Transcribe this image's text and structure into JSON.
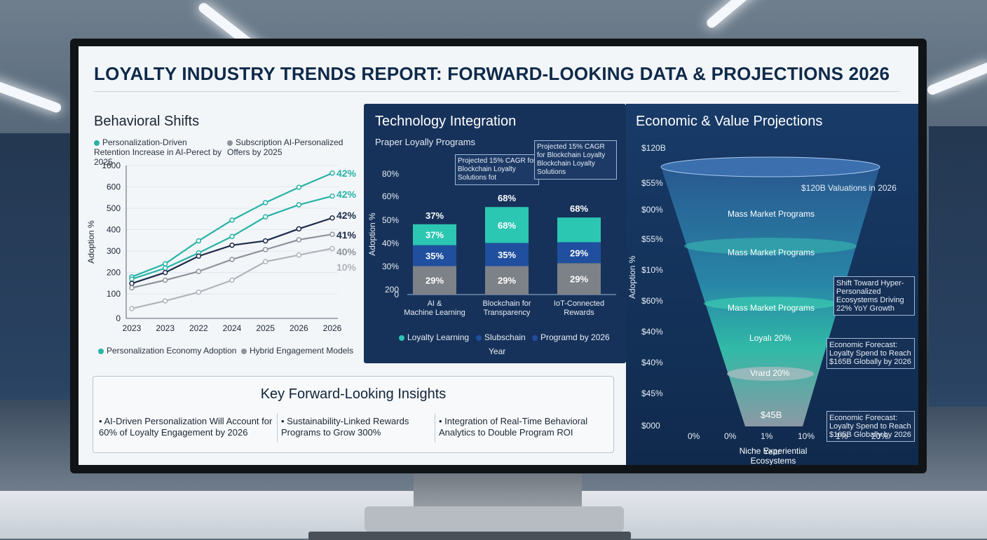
{
  "report_title": "LOYALTY INDUSTRY TRENDS REPORT: FORWARD-LOOKING DATA & PROJECTIONS 2026",
  "behavioral": {
    "title": "Behavioral Shifts",
    "legend_top": [
      "Personalization-Driven Retention Increase in AI-Perect by 2025",
      "Subscription AI-Personalized Offers by 2025"
    ],
    "legend_bottom": [
      "Personalization Economy Adoption",
      "Hybrid Engagement Models"
    ],
    "ylabel": "Adoption %",
    "yticks": [
      "1600",
      "600",
      "500",
      "400",
      "300",
      "200",
      "100",
      "0"
    ],
    "xticks": [
      "2023",
      "2023",
      "2022",
      "2024",
      "2025",
      "2026",
      "2026"
    ],
    "end_labels": [
      "42%",
      "42%",
      "42%",
      "41%",
      "40%",
      "10%"
    ],
    "colors": {
      "teal": "#27b3a6",
      "navy": "#1c2a4b",
      "gray": "#8d949b",
      "lightgray": "#aeb4ba"
    }
  },
  "technology": {
    "title": "Technology Integration",
    "subtitle": "Praper Loyally Programs",
    "callout1": "Projected 15% CAGR for Blockchain Loyalty Solutions fot",
    "callout2": "Projected 15% CAGR for Blockchain Loyalty Blockchain Loyalty Solutions",
    "ylabel": "Adoption %",
    "xlabel": "Year",
    "yticks": [
      "80%",
      "60%",
      "50%",
      "40%",
      "30%",
      "200",
      "0"
    ],
    "categories": [
      "AI & Machine Learning",
      "Blockchain for Transparency",
      "IoT-Connected Rewards"
    ],
    "top_labels": [
      "37%",
      "68%",
      "68%"
    ],
    "segment_labels": [
      [
        "29%",
        "35%",
        "37%"
      ],
      [
        "29%",
        "35%",
        "68%"
      ],
      [
        "29%",
        "29%",
        ""
      ]
    ],
    "legend": [
      "Loyalty Learning",
      "Slubschain",
      "Programd by 2026"
    ],
    "colors": {
      "teal": "#2cc7b2",
      "blue": "#1f4f9e",
      "gray": "#7d8288"
    }
  },
  "economic": {
    "title": "Economic & Value Projections",
    "ylabel": "Adoption %",
    "xlabel": "Year",
    "top_note": "$120B Valuations in 2026",
    "yticks": [
      "$120B",
      "$55%",
      "$00%",
      "$55%",
      "$10%",
      "$60%",
      "$40%",
      "$40%",
      "$45%",
      "$000"
    ],
    "xticks": [
      "0%",
      "0%",
      "1%",
      "10%",
      "1%",
      "20%"
    ],
    "funnel_labels": [
      "Mass Market Programs",
      "Mass Market Programs",
      "Mass Market Programs",
      "Loyalı 20%",
      "Vrard 20%",
      "$45B",
      "Niche Experiential Ecosystems"
    ],
    "callouts": [
      "Shift Toward Hyper-Personalized Ecosystems Driving 22% YoY Growth",
      "Economic Forecast: Loyalty Spend to Reach $165B Globally by 2026",
      "Economic Forecast: Loyalty Spend to Reach $165B Globally by 2026"
    ]
  },
  "insights": {
    "title": "Key Forward-Looking Insights",
    "items": [
      "AI-Driven Personalization Will Account for 60% of Loyalty Engagement by 2026",
      "Sustainability-Linked Rewards Programs to Grow 300%",
      "Integration of Real-Time Behavioral Analytics to Double Program ROI"
    ]
  },
  "chart_data": [
    {
      "type": "line",
      "title": "Behavioral Shifts",
      "xlabel": "",
      "ylabel": "Adoption %",
      "x": [
        "2023",
        "2023",
        "2022",
        "2024",
        "2025",
        "2026",
        "2026"
      ],
      "ylim": [
        0,
        700
      ],
      "series": [
        {
          "name": "Personalization-Driven Retention Increase in AI-Perect by 2025",
          "values": [
            190,
            250,
            355,
            450,
            530,
            600,
            665
          ]
        },
        {
          "name": "Subscription AI-Personalized Offers by 2025",
          "values": [
            180,
            230,
            300,
            375,
            465,
            520,
            560
          ]
        },
        {
          "name": "Personalization Economy Adoption",
          "values": [
            160,
            210,
            285,
            335,
            355,
            410,
            460
          ]
        },
        {
          "name": "Hybrid Engagement Models",
          "values": [
            140,
            175,
            215,
            270,
            315,
            360,
            385
          ]
        },
        {
          "values": [
            45,
            80,
            120,
            175,
            260,
            290,
            320
          ]
        }
      ]
    },
    {
      "type": "bar",
      "title": "Technology Integration",
      "xlabel": "Year",
      "ylabel": "Adoption %",
      "categories": [
        "AI & Machine Learning",
        "Blockchain for Transparency",
        "IoT-Connected Rewards"
      ],
      "ylim": [
        0,
        90
      ],
      "series": [
        {
          "name": "Loyalty Learning",
          "values": [
            29,
            29,
            29
          ]
        },
        {
          "name": "Slubschain",
          "values": [
            35,
            35,
            29
          ]
        },
        {
          "name": "Programd by 2026",
          "values": [
            37,
            68,
            68
          ]
        }
      ]
    }
  ]
}
